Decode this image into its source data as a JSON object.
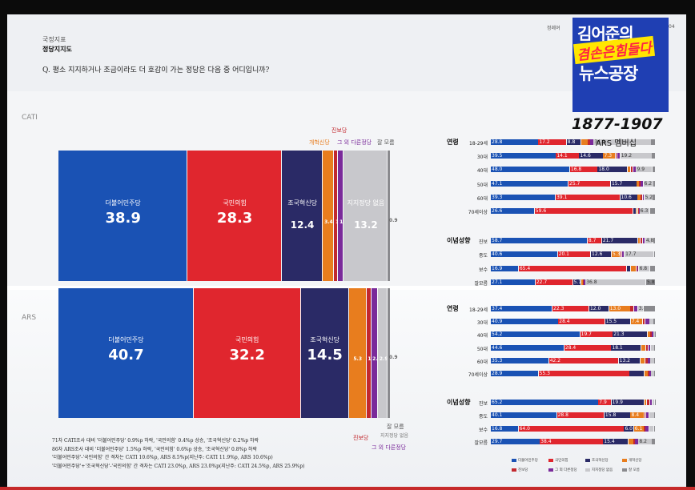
{
  "header": {
    "section": "국정지표",
    "title": "정당지지도",
    "question": "Q. 평소 지지하거나 조금이라도 더 호감이 가는 정당은 다음 중 어디입니까?",
    "right_fragment": "정례여",
    "right_num": "04"
  },
  "overlay": {
    "channel_line1": "김어준의",
    "channel_line2": "겸손은힘들다",
    "channel_line3": "뉴스공장",
    "range": "1877-1907",
    "ars_member": "ARS 멤버십"
  },
  "colors": {
    "democratic": "#1a52b4",
    "ppp": "#e0262e",
    "rebuilding": "#2a2a66",
    "reform": "#e87d1e",
    "progressive": "#c2282e",
    "other": "#7a2a9a",
    "none": "#c8c8cc",
    "dontknow": "#8a8a8e"
  },
  "chart_data": [
    {
      "type": "bar",
      "subtype": "stacked-100",
      "name": "CATI",
      "title": "CATI",
      "categories": [
        "더불어민주당",
        "국민의힘",
        "조국혁신당",
        "개혁신당",
        "진보당",
        "그 외 다른정당",
        "지지정당 없음",
        "잘 모름"
      ],
      "values": [
        38.9,
        28.3,
        12.4,
        3.4,
        1.2,
        1.7,
        13.2,
        0.9
      ],
      "value_labels": [
        "38.9",
        "28.3",
        "12.4",
        "3.4",
        "1.2",
        "1.7",
        "13.2",
        "0.9"
      ]
    },
    {
      "type": "bar",
      "subtype": "stacked-100",
      "name": "ARS",
      "title": "ARS",
      "categories": [
        "더불어민주당",
        "국민의힘",
        "조국혁신당",
        "개혁신당",
        "진보당",
        "그 외 다른정당",
        "지지정당 없음",
        "잘 모름"
      ],
      "values": [
        40.7,
        32.2,
        14.5,
        5.3,
        1.4,
        2.1,
        2.9,
        0.9
      ],
      "value_labels": [
        "40.7",
        "32.2",
        "14.5",
        "5.3",
        "1.4",
        "2.1",
        "2.9",
        "0.9"
      ]
    },
    {
      "type": "bar",
      "subtype": "stacked-100-horizontal",
      "name": "CATI 세부",
      "groups": [
        {
          "title": "연령",
          "rows": [
            {
              "label": "18-29세",
              "values": [
                28.8,
                17.2,
                8.8,
                4.0,
                1.5,
                2.0,
                34.9,
                2.8
              ],
              "labels": [
                "28.8",
                "17.2",
                "8.8",
                "",
                "",
                "",
                "34.9",
                ""
              ]
            },
            {
              "label": "30대",
              "values": [
                39.5,
                14.1,
                14.6,
                7.3,
                1.0,
                2.0,
                19.2,
                2.3
              ],
              "labels": [
                "39.5",
                "14.1",
                "14.6",
                "7.3",
                "",
                "",
                "19.2",
                ""
              ]
            },
            {
              "label": "40대",
              "values": [
                48.0,
                16.8,
                18.0,
                2.0,
                1.5,
                1.8,
                9.9,
                2.0
              ],
              "labels": [
                "48.0",
                "16.8",
                "18.0",
                "",
                "",
                "",
                "9.9",
                ""
              ]
            },
            {
              "label": "50대",
              "values": [
                47.1,
                25.7,
                15.7,
                1.5,
                1.0,
                1.5,
                6.2,
                1.3
              ],
              "labels": [
                "47.1",
                "25.7",
                "15.7",
                "",
                "",
                "",
                "6.2",
                ""
              ]
            },
            {
              "label": "60대",
              "values": [
                39.3,
                39.1,
                10.6,
                2.0,
                1.0,
                1.0,
                5.2,
                1.8
              ],
              "labels": [
                "39.3",
                "39.1",
                "10.6",
                "",
                "",
                "",
                "5.2",
                ""
              ]
            },
            {
              "label": "70세이상",
              "values": [
                26.6,
                59.6,
                2.0,
                1.0,
                0.5,
                0.5,
                6.3,
                3.5
              ],
              "labels": [
                "26.6",
                "59.6",
                "",
                "",
                "",
                "",
                "6.3",
                ""
              ]
            }
          ]
        },
        {
          "title": "이념성향",
          "rows": [
            {
              "label": "진보",
              "values": [
                58.7,
                8.7,
                21.7,
                1.5,
                1.5,
                1.5,
                4.8,
                1.6
              ],
              "labels": [
                "58.7",
                "8.7",
                "21.7",
                "",
                "",
                "",
                "4.8",
                ""
              ]
            },
            {
              "label": "중도",
              "values": [
                40.6,
                20.1,
                12.6,
                5.3,
                1.0,
                1.5,
                17.7,
                1.2
              ],
              "labels": [
                "40.6",
                "20.1",
                "12.6",
                "5.3",
                "",
                "",
                "17.7",
                ""
              ]
            },
            {
              "label": "보수",
              "values": [
                16.9,
                65.4,
                2.5,
                3.5,
                0.5,
                0.8,
                6.8,
                3.6
              ],
              "labels": [
                "16.9",
                "65.4",
                "",
                "",
                "",
                "",
                "6.8",
                ""
              ]
            },
            {
              "label": "잘모름",
              "values": [
                27.1,
                22.7,
                5.1,
                1.0,
                0.5,
                1.0,
                36.8,
                5.8
              ],
              "labels": [
                "27.1",
                "22.7",
                "5.1",
                "",
                "",
                "",
                "36.8",
                "5.8"
              ]
            }
          ]
        }
      ]
    },
    {
      "type": "bar",
      "subtype": "stacked-100-horizontal",
      "name": "ARS 세부",
      "groups": [
        {
          "title": "연령",
          "rows": [
            {
              "label": "18-29세",
              "values": [
                37.4,
                22.3,
                12.0,
                13.0,
                2.0,
                2.5,
                3.4,
                7.4
              ],
              "labels": [
                "37.4",
                "22.3",
                "12.0",
                "13.0",
                "",
                "",
                "3.4",
                ""
              ]
            },
            {
              "label": "30대",
              "values": [
                40.9,
                28.4,
                15.5,
                7.4,
                1.5,
                2.5,
                2.5,
                1.3
              ],
              "labels": [
                "40.9",
                "28.4",
                "15.5",
                "7.4",
                "",
                "",
                "",
                ""
              ]
            },
            {
              "label": "40대",
              "values": [
                54.2,
                19.7,
                21.3,
                1.5,
                1.0,
                1.0,
                1.0,
                0.3
              ],
              "labels": [
                "54.2",
                "19.7",
                "21.3",
                "",
                "",
                "",
                "",
                ""
              ]
            },
            {
              "label": "50대",
              "values": [
                44.6,
                28.4,
                18.1,
                3.0,
                1.5,
                1.5,
                2.0,
                0.9
              ],
              "labels": [
                "44.6",
                "28.4",
                "18.1",
                "",
                "",
                "",
                "",
                ""
              ]
            },
            {
              "label": "60대",
              "values": [
                35.3,
                42.2,
                13.2,
                3.0,
                1.5,
                1.5,
                2.5,
                0.8
              ],
              "labels": [
                "35.3",
                "42.2",
                "13.2",
                "",
                "",
                "",
                "",
                ""
              ]
            },
            {
              "label": "70세이상",
              "values": [
                28.9,
                55.3,
                9.0,
                2.0,
                1.0,
                1.0,
                2.0,
                0.8
              ],
              "labels": [
                "28.9",
                "55.3",
                "",
                "",
                "",
                "",
                "",
                ""
              ]
            }
          ]
        },
        {
          "title": "이념성향",
          "rows": [
            {
              "label": "진보",
              "values": [
                65.2,
                7.9,
                19.9,
                1.5,
                2.0,
                1.5,
                1.5,
                0.5
              ],
              "labels": [
                "65.2",
                "7.9",
                "19.9",
                "",
                "",
                "",
                "",
                ""
              ]
            },
            {
              "label": "중도",
              "values": [
                40.1,
                28.8,
                15.8,
                8.4,
                1.0,
                2.0,
                3.0,
                0.9
              ],
              "labels": [
                "40.1",
                "28.8",
                "15.8",
                "8.4",
                "",
                "",
                "",
                ""
              ]
            },
            {
              "label": "보수",
              "values": [
                16.8,
                64.0,
                6.0,
                6.1,
                1.0,
                2.0,
                3.0,
                1.1
              ],
              "labels": [
                "16.8",
                "64.0",
                "6.0",
                "6.1",
                "",
                "",
                "",
                ""
              ]
            },
            {
              "label": "잘모름",
              "values": [
                29.7,
                38.4,
                15.4,
                3.0,
                1.0,
                2.0,
                8.2,
                2.3
              ],
              "labels": [
                "29.7",
                "38.4",
                "15.4",
                "",
                "",
                "",
                "8.2",
                ""
              ]
            }
          ]
        }
      ]
    }
  ],
  "big_labels": {
    "cati": {
      "democratic": "더불어민주당",
      "ppp": "국민의힘",
      "rebuilding": "조국혁신당",
      "none": "지지정당 없음"
    },
    "ars": {
      "democratic": "더불어민주당",
      "ppp": "국민의힘",
      "rebuilding": "조국혁신당",
      "reform": "개혁 신당"
    }
  },
  "callouts": {
    "progressive": "진보당",
    "reform": "개혁신당",
    "other": "그 외 다른정당",
    "dontknow": "잘 모름",
    "ars_progressive": "진보당",
    "ars_other": "그 외 다른정당",
    "ars_dontknow": "잘 모름",
    "ars_none": "지지정당 없음"
  },
  "notes": [
    "71차 CATI조사 대비 '더불어민주당' 0.9%p 하락, '국민의힘' 0.4%p 상승, '조국혁신당' 0.2%p 하락",
    "86차 ARS조사 대비 '더불어민주당' 1.5%p 하락, '국민의힘' 0.6%p 상승, '조국혁신당' 0.8%p 하락",
    "'더불어민주당'-'국민의힘' 간 격차는 CATI 10.6%p, ARS 8.5%p(지난주: CATI 11.9%p, ARS 10.6%p)",
    "'더불어민주당'+'조국혁신당'-'국민의힘' 간 격차는 CATI 23.0%p, ARS 23.0%p(지난주: CATI 24.5%p, ARS 25.9%p)"
  ],
  "legend": [
    "더불어민주당",
    "국민의힘",
    "조국혁신당",
    "개혁신당",
    "진보당",
    "그 외 다른정당",
    "지지정당 없음",
    "잘 모름"
  ],
  "side_labels": {
    "cati": "CATI",
    "ars": "ARS"
  }
}
